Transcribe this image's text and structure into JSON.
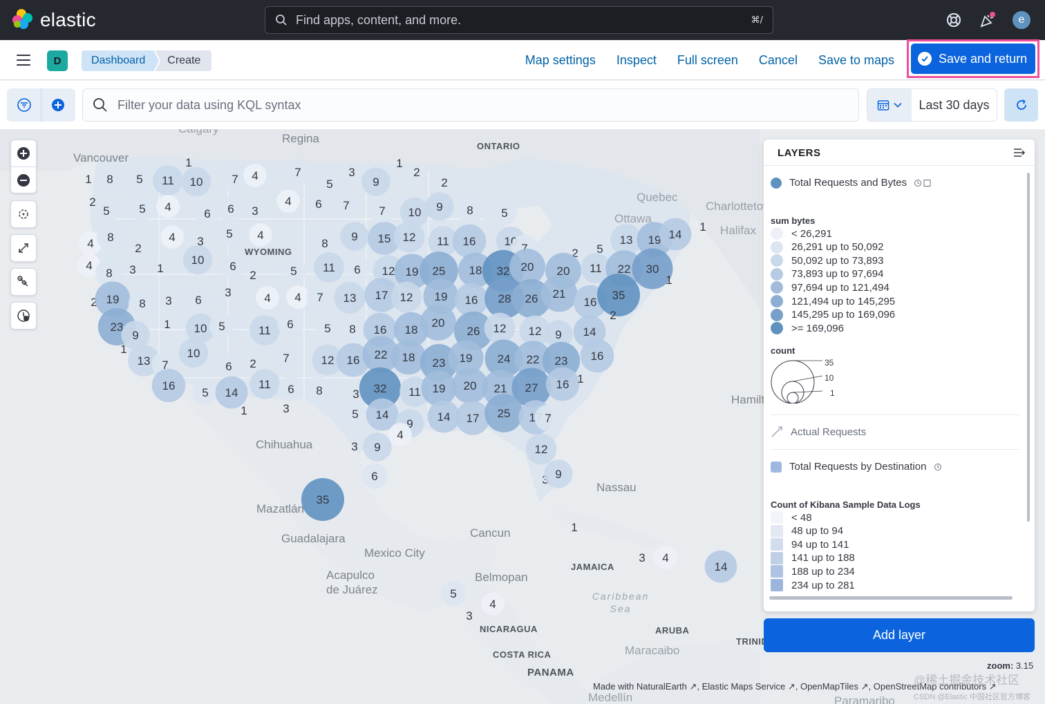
{
  "topnav": {
    "brand": "elastic",
    "search_placeholder": "Find apps, content, and more.",
    "search_shortcut": "⌘/",
    "avatar_initial": "e",
    "icons": [
      "help-icon",
      "newsfeed-icon"
    ]
  },
  "appbar": {
    "space_initial": "D",
    "breadcrumbs": [
      "Dashboard",
      "Create"
    ],
    "links": [
      "Map settings",
      "Inspect",
      "Full screen",
      "Cancel",
      "Save to maps"
    ],
    "save_and_return": "Save and return"
  },
  "querybar": {
    "kql_placeholder": "Filter your data using KQL syntax",
    "date_range": "Last 30 days"
  },
  "map": {
    "place_labels": [
      {
        "text": "Calgary",
        "style": "dim"
      },
      {
        "text": "Regina",
        "style": "normal"
      },
      {
        "text": "ONTARIO",
        "style": "caps"
      },
      {
        "text": "Vancouver",
        "style": "normal"
      },
      {
        "text": "Quebec",
        "style": "dim"
      },
      {
        "text": "Ottawa",
        "style": "dim"
      },
      {
        "text": "Charlottetown",
        "style": "dim"
      },
      {
        "text": "Halifax",
        "style": "dim"
      },
      {
        "text": "WYOMING",
        "style": "caps"
      },
      {
        "text": "Hamilton",
        "style": "normal"
      },
      {
        "text": "Chihuahua",
        "style": "normal"
      },
      {
        "text": "Nassau",
        "style": "normal"
      },
      {
        "text": "Mazatlán",
        "style": "normal"
      },
      {
        "text": "Guadalajara",
        "style": "normal"
      },
      {
        "text": "Cancun",
        "style": "normal"
      },
      {
        "text": "Mexico City",
        "style": "normal"
      },
      {
        "text": "JAMAICA",
        "style": "caps"
      },
      {
        "text": "Acapulco de Juárez",
        "style": "normal"
      },
      {
        "text": "Belmopan",
        "style": "normal"
      },
      {
        "text": "Caribbean Sea",
        "style": "ital"
      },
      {
        "text": "NICARAGUA",
        "style": "caps"
      },
      {
        "text": "ARUBA",
        "style": "caps"
      },
      {
        "text": "COSTA RICA",
        "style": "caps"
      },
      {
        "text": "PANAMA",
        "style": "caps"
      },
      {
        "text": "Maracaibo",
        "style": "dim"
      },
      {
        "text": "TRINIDAD AND TOBAGO",
        "style": "caps"
      },
      {
        "text": "Medellín",
        "style": "dim"
      },
      {
        "text": "Paramaribo",
        "style": "dim"
      }
    ],
    "clusters": [
      {
        "n": 1
      },
      {
        "n": 8
      },
      {
        "n": 5
      },
      {
        "n": 11
      },
      {
        "n": 10
      },
      {
        "n": 7
      },
      {
        "n": 4
      },
      {
        "n": 7
      },
      {
        "n": 3
      },
      {
        "n": 9
      },
      {
        "n": 1
      },
      {
        "n": 2
      },
      {
        "n": 5
      },
      {
        "n": 2
      },
      {
        "n": 1
      },
      {
        "n": 2
      },
      {
        "n": 5
      },
      {
        "n": 5
      },
      {
        "n": 4
      },
      {
        "n": 6
      },
      {
        "n": 6
      },
      {
        "n": 3
      },
      {
        "n": 4
      },
      {
        "n": 6
      },
      {
        "n": 7
      },
      {
        "n": 7
      },
      {
        "n": 10
      },
      {
        "n": 9
      },
      {
        "n": 8
      },
      {
        "n": 5
      },
      {
        "n": 4
      },
      {
        "n": 8
      },
      {
        "n": 2
      },
      {
        "n": 4
      },
      {
        "n": 3
      },
      {
        "n": 5
      },
      {
        "n": 4
      },
      {
        "n": 8
      },
      {
        "n": 9
      },
      {
        "n": 15
      },
      {
        "n": 12
      },
      {
        "n": 11
      },
      {
        "n": 16
      },
      {
        "n": 10
      },
      {
        "n": 7
      },
      {
        "n": 13
      },
      {
        "n": 19
      },
      {
        "n": 14
      },
      {
        "n": 1
      },
      {
        "n": 2
      },
      {
        "n": 5
      },
      {
        "n": 4
      },
      {
        "n": 8
      },
      {
        "n": 3
      },
      {
        "n": 1
      },
      {
        "n": 10
      },
      {
        "n": 6
      },
      {
        "n": 2
      },
      {
        "n": 5
      },
      {
        "n": 11
      },
      {
        "n": 6
      },
      {
        "n": 12
      },
      {
        "n": 19
      },
      {
        "n": 25
      },
      {
        "n": 18
      },
      {
        "n": 32
      },
      {
        "n": 20
      },
      {
        "n": 20
      },
      {
        "n": 11
      },
      {
        "n": 22
      },
      {
        "n": 30
      },
      {
        "n": 1
      },
      {
        "n": 2
      },
      {
        "n": 19
      },
      {
        "n": 8
      },
      {
        "n": 3
      },
      {
        "n": 6
      },
      {
        "n": 3
      },
      {
        "n": 4
      },
      {
        "n": 4
      },
      {
        "n": 7
      },
      {
        "n": 13
      },
      {
        "n": 17
      },
      {
        "n": 12
      },
      {
        "n": 19
      },
      {
        "n": 16
      },
      {
        "n": 28
      },
      {
        "n": 26
      },
      {
        "n": 21
      },
      {
        "n": 16
      },
      {
        "n": 35
      },
      {
        "n": 2
      },
      {
        "n": 23
      },
      {
        "n": 9
      },
      {
        "n": 1
      },
      {
        "n": 10
      },
      {
        "n": 5
      },
      {
        "n": 11
      },
      {
        "n": 6
      },
      {
        "n": 5
      },
      {
        "n": 8
      },
      {
        "n": 16
      },
      {
        "n": 18
      },
      {
        "n": 20
      },
      {
        "n": 26
      },
      {
        "n": 12
      },
      {
        "n": 12
      },
      {
        "n": 9
      },
      {
        "n": 14
      },
      {
        "n": 1
      },
      {
        "n": 13
      },
      {
        "n": 7
      },
      {
        "n": 10
      },
      {
        "n": 6
      },
      {
        "n": 2
      },
      {
        "n": 7
      },
      {
        "n": 12
      },
      {
        "n": 16
      },
      {
        "n": 22
      },
      {
        "n": 18
      },
      {
        "n": 23
      },
      {
        "n": 19
      },
      {
        "n": 24
      },
      {
        "n": 22
      },
      {
        "n": 23
      },
      {
        "n": 16
      },
      {
        "n": 16
      },
      {
        "n": 5
      },
      {
        "n": 14
      },
      {
        "n": 11
      },
      {
        "n": 6
      },
      {
        "n": 8
      },
      {
        "n": 3
      },
      {
        "n": 32
      },
      {
        "n": 11
      },
      {
        "n": 19
      },
      {
        "n": 20
      },
      {
        "n": 21
      },
      {
        "n": 27
      },
      {
        "n": 16
      },
      {
        "n": 1
      },
      {
        "n": 1
      },
      {
        "n": 3
      },
      {
        "n": 5
      },
      {
        "n": 14
      },
      {
        "n": 9
      },
      {
        "n": 4
      },
      {
        "n": 14
      },
      {
        "n": 17
      },
      {
        "n": 25
      },
      {
        "n": 17
      },
      {
        "n": 7
      },
      {
        "n": 3
      },
      {
        "n": 9
      },
      {
        "n": 12
      },
      {
        "n": 6
      },
      {
        "n": 3
      },
      {
        "n": 9
      },
      {
        "n": 35
      },
      {
        "n": 1
      },
      {
        "n": 3
      },
      {
        "n": 4
      },
      {
        "n": 14
      },
      {
        "n": 5
      },
      {
        "n": 4
      },
      {
        "n": 3
      }
    ]
  },
  "layers_panel": {
    "title": "LAYERS",
    "layer1": {
      "name": "Total Requests and Bytes",
      "color": "#6092c0"
    },
    "legend1": {
      "title": "sum bytes",
      "items": [
        "< 26,291",
        "26,291 up to 50,092",
        "50,092 up to 73,893",
        "73,893 up to 97,694",
        "97,694 up to 121,494",
        "121,494 up to 145,295",
        "145,295 up to 169,096",
        ">= 169,096"
      ],
      "colors": [
        "#edf1f7",
        "#dce6f1",
        "#c9d8ea",
        "#b5cae3",
        "#a1bcdb",
        "#8caed3",
        "#779fca",
        "#6092c0"
      ]
    },
    "count_legend": {
      "title": "count",
      "values": [
        "35",
        "10",
        "1"
      ]
    },
    "layer2": {
      "name": "Actual Requests"
    },
    "layer3": {
      "name": "Total Requests by Destination",
      "color": "#9eb9e0"
    },
    "legend2": {
      "title": "Count of Kibana Sample Data Logs",
      "items": [
        "< 48",
        "48 up to 94",
        "94 up to 141",
        "141 up to 188",
        "188 up to 234",
        "234 up to 281"
      ],
      "colors": [
        "#f1f4f9",
        "#e2e9f3",
        "#d1dcee",
        "#c0cfe8",
        "#aec2e2",
        "#9db5dc"
      ]
    },
    "add_layer": "Add layer"
  },
  "footer": {
    "zoom_label": "zoom:",
    "zoom_value": "3.15",
    "attribution": [
      "Made with NaturalEarth",
      "Elastic Maps Service",
      "OpenMapTiles",
      "OpenStreetMap contributors"
    ],
    "watermark": "@稀土掘金技术社区",
    "watermark2": "CSDN @Elastic 中国社区官方博客"
  }
}
